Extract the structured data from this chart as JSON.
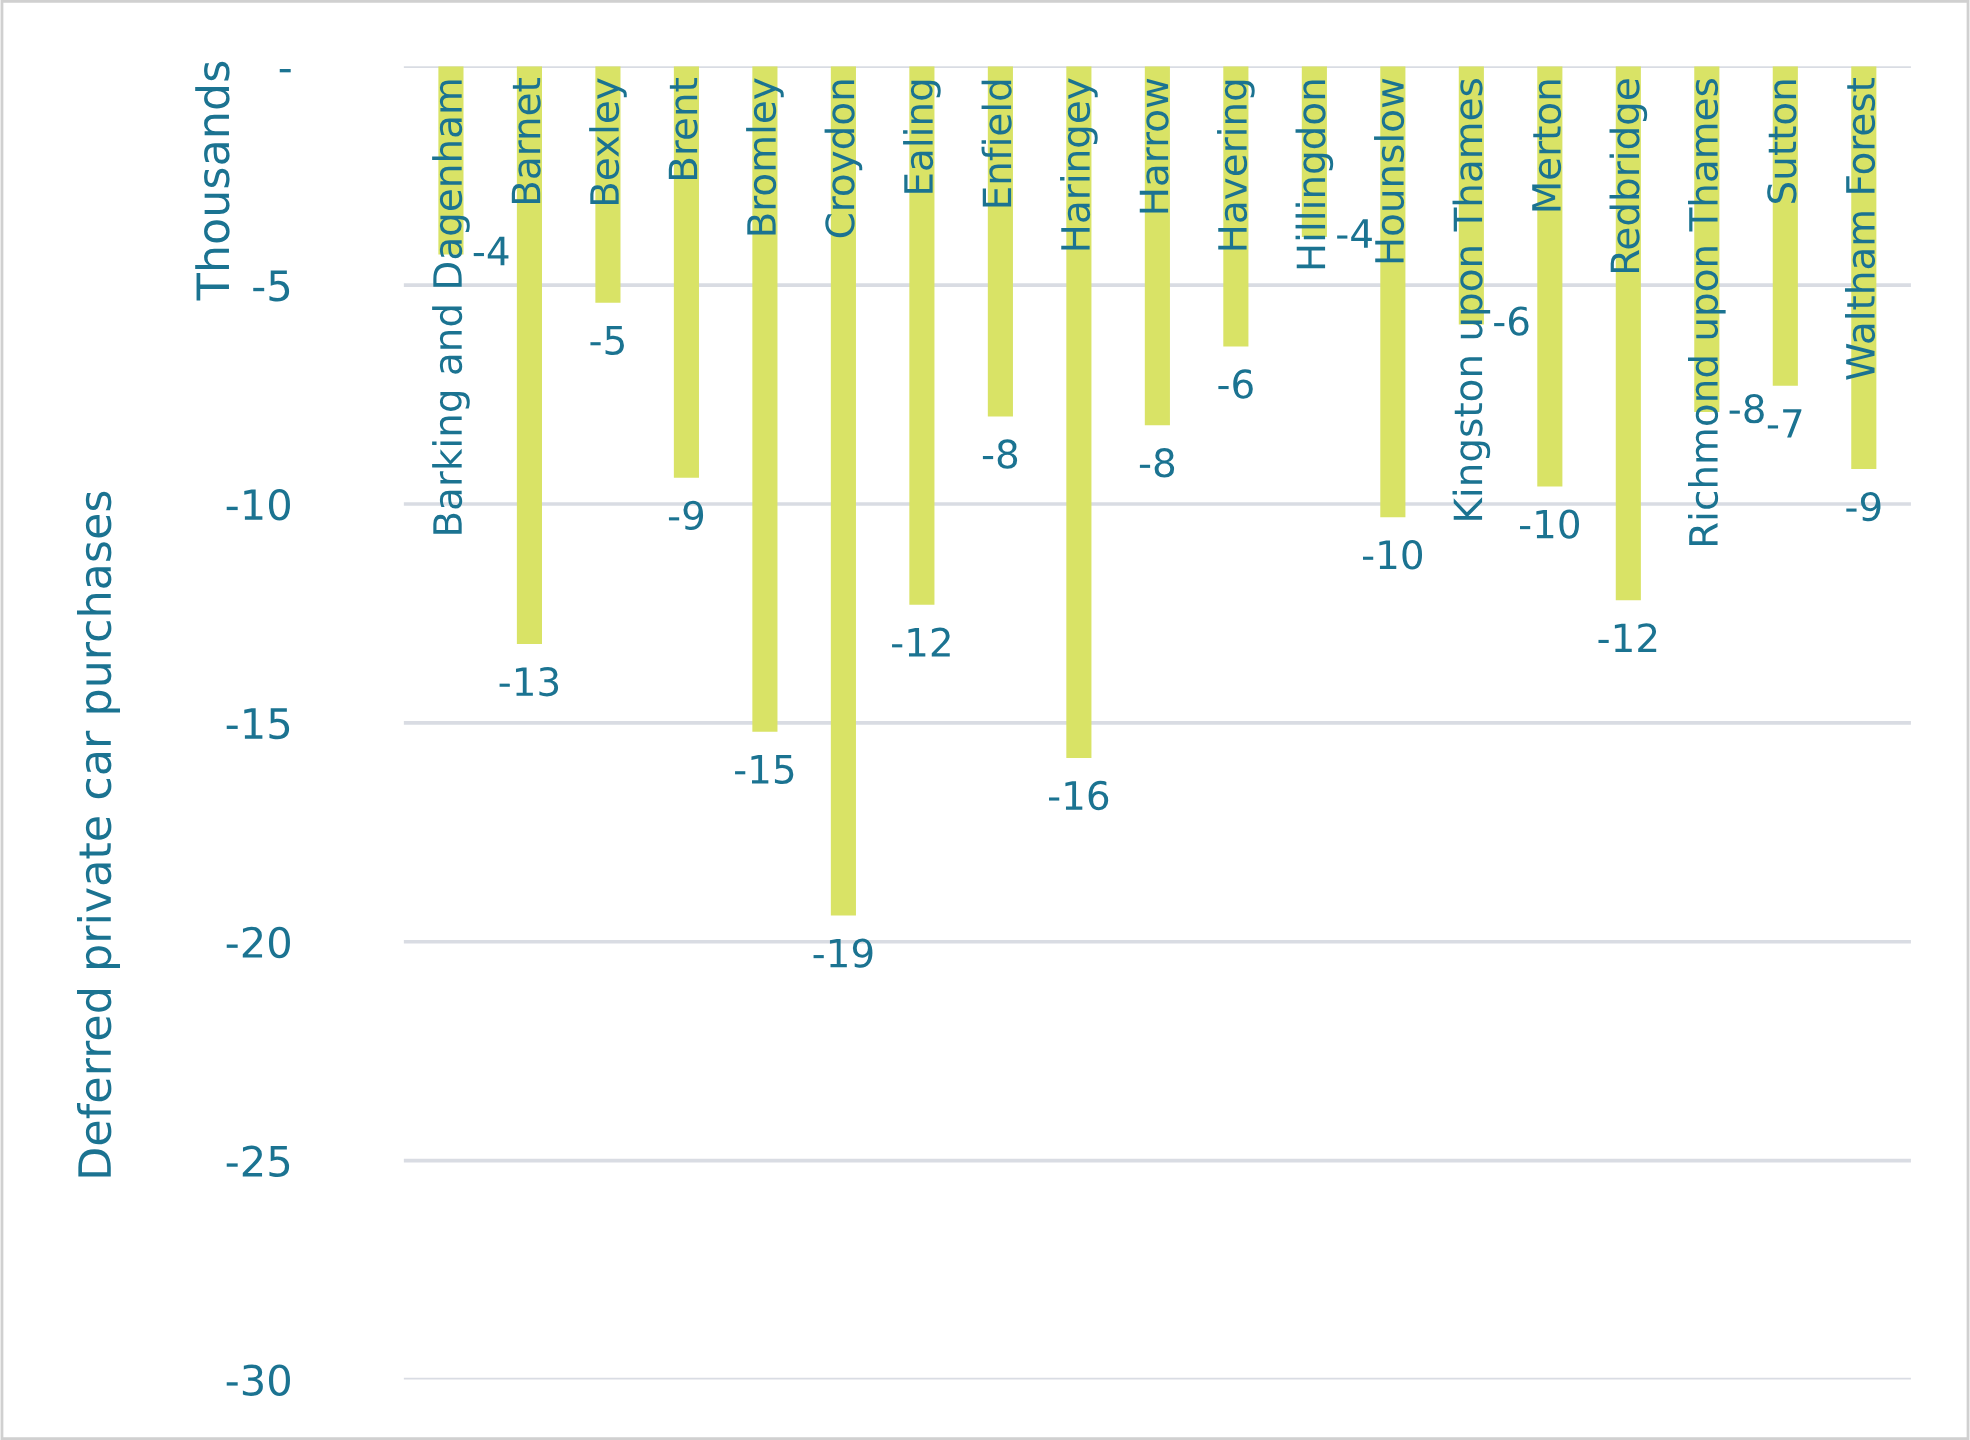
{
  "chart_data": {
    "type": "bar",
    "ylabel": "Deferred private car purchases",
    "annotations": [
      "Thousands"
    ],
    "categories": [
      "Barking and Dagenham",
      "Barnet",
      "Bexley",
      "Brent",
      "Bromley",
      "Croydon",
      "Ealing",
      "Enfield",
      "Haringey",
      "Harrow",
      "Havering",
      "Hillingdon",
      "Hounslow",
      "Kingston upon Thames",
      "Merton",
      "Redbridge",
      "Richmond upon Thames",
      "Sutton",
      "Waltham Forest"
    ],
    "values": [
      -4.3,
      -13.2,
      -5.4,
      -9.4,
      -15.2,
      -19.4,
      -12.3,
      -8.0,
      -15.8,
      -8.2,
      -6.4,
      -3.9,
      -10.3,
      -5.9,
      -9.6,
      -12.2,
      -7.9,
      -7.3,
      -9.2
    ],
    "value_labels": [
      "-4",
      "-13",
      "-5",
      "-9",
      "-15",
      "-19",
      "-12",
      "-8",
      "-16",
      "-8",
      "-6",
      "-4",
      "-10",
      "-6",
      "-10",
      "-12",
      "-8",
      "-7",
      "-9"
    ],
    "color": "#d9e366",
    "ylim": [
      -30,
      0
    ],
    "yticks": [
      {
        "value": 0,
        "label": "-"
      },
      -5,
      -10,
      -15,
      -20,
      -25,
      -30
    ],
    "grid": "y"
  }
}
